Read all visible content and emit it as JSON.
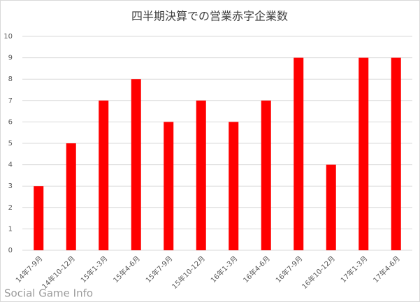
{
  "chart_data": {
    "type": "bar",
    "title": "四半期決算での営業赤字企業数",
    "categories": [
      "14年7-9月",
      "14年10-12月",
      "15年1-3月",
      "15年4-6月",
      "15年7-9月",
      "15年10-12月",
      "16年1-3月",
      "16年4-6月",
      "16年7-9月",
      "16年10-12月",
      "17年1-3月",
      "17年4-6月"
    ],
    "values": [
      3,
      5,
      7,
      8,
      6,
      7,
      6,
      7,
      9,
      4,
      9,
      9
    ],
    "color": "#ff0000",
    "ylim": [
      0,
      10
    ],
    "yticks": [
      0,
      1,
      2,
      3,
      4,
      5,
      6,
      7,
      8,
      9,
      10
    ],
    "grid": true,
    "watermark": "Social Game Info"
  }
}
